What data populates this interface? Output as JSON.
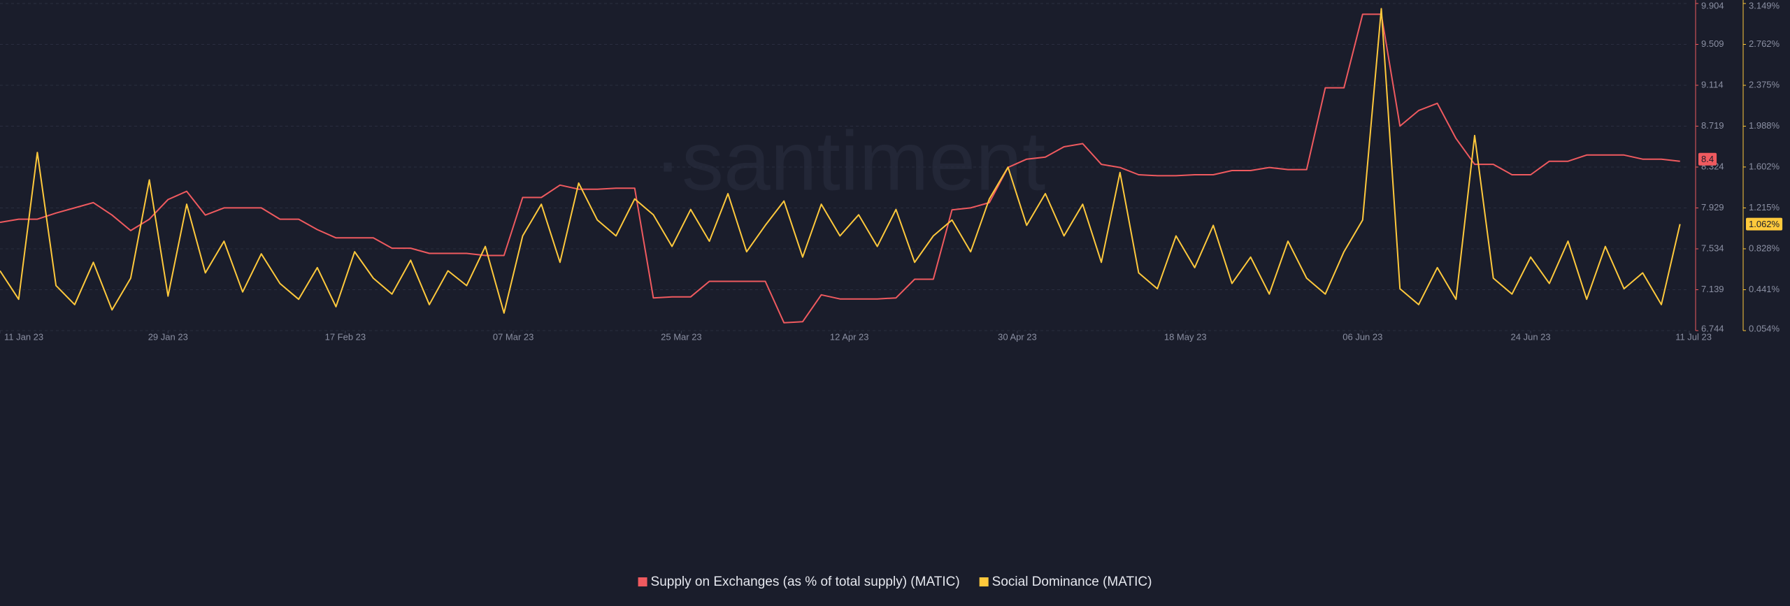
{
  "chart_data": {
    "type": "line",
    "watermark": "·santiment",
    "x": [
      "2023-01-11",
      "2023-01-13",
      "2023-01-15",
      "2023-01-17",
      "2023-01-19",
      "2023-01-21",
      "2023-01-23",
      "2023-01-25",
      "2023-01-27",
      "2023-01-29",
      "2023-01-31",
      "2023-02-02",
      "2023-02-04",
      "2023-02-06",
      "2023-02-08",
      "2023-02-10",
      "2023-02-12",
      "2023-02-14",
      "2023-02-16",
      "2023-02-18",
      "2023-02-20",
      "2023-02-22",
      "2023-02-24",
      "2023-02-26",
      "2023-02-28",
      "2023-03-02",
      "2023-03-04",
      "2023-03-06",
      "2023-03-08",
      "2023-03-10",
      "2023-03-12",
      "2023-03-14",
      "2023-03-16",
      "2023-03-18",
      "2023-03-20",
      "2023-03-22",
      "2023-03-24",
      "2023-03-26",
      "2023-03-28",
      "2023-03-30",
      "2023-04-01",
      "2023-04-03",
      "2023-04-05",
      "2023-04-07",
      "2023-04-09",
      "2023-04-11",
      "2023-04-13",
      "2023-04-15",
      "2023-04-17",
      "2023-04-19",
      "2023-04-21",
      "2023-04-23",
      "2023-04-25",
      "2023-04-27",
      "2023-04-29",
      "2023-05-01",
      "2023-05-03",
      "2023-05-05",
      "2023-05-07",
      "2023-05-09",
      "2023-05-11",
      "2023-05-13",
      "2023-05-15",
      "2023-05-17",
      "2023-05-19",
      "2023-05-21",
      "2023-05-23",
      "2023-05-25",
      "2023-05-27",
      "2023-05-29",
      "2023-05-31",
      "2023-06-02",
      "2023-06-04",
      "2023-06-06",
      "2023-06-08",
      "2023-06-10",
      "2023-06-12",
      "2023-06-14",
      "2023-06-16",
      "2023-06-18",
      "2023-06-20",
      "2023-06-22",
      "2023-06-24",
      "2023-06-26",
      "2023-06-28",
      "2023-06-30",
      "2023-07-02",
      "2023-07-04",
      "2023-07-06",
      "2023-07-08",
      "2023-07-10"
    ],
    "xlim": [
      "2023-01-11",
      "2023-07-11"
    ],
    "xticks": [
      {
        "value": "2023-01-11",
        "label": "11 Jan 23"
      },
      {
        "value": "2023-01-29",
        "label": "29 Jan 23"
      },
      {
        "value": "2023-02-17",
        "label": "17 Feb 23"
      },
      {
        "value": "2023-03-07",
        "label": "07 Mar 23"
      },
      {
        "value": "2023-03-25",
        "label": "25 Mar 23"
      },
      {
        "value": "2023-04-12",
        "label": "12 Apr 23"
      },
      {
        "value": "2023-04-30",
        "label": "30 Apr 23"
      },
      {
        "value": "2023-05-18",
        "label": "18 May 23"
      },
      {
        "value": "2023-06-06",
        "label": "06 Jun 23"
      },
      {
        "value": "2023-06-24",
        "label": "24 Jun 23"
      },
      {
        "value": "2023-07-11",
        "label": "11 Jul 23"
      }
    ],
    "ylim": [
      6.744,
      9.904
    ],
    "yticks": [
      6.744,
      7.139,
      7.534,
      7.929,
      8.324,
      8.719,
      9.114,
      9.509,
      9.904
    ],
    "y2lim": [
      0.054,
      3.149
    ],
    "y2ticks": [
      {
        "value": 0.054,
        "label": "0.054%"
      },
      {
        "value": 0.441,
        "label": "0.441%"
      },
      {
        "value": 0.828,
        "label": "0.828%"
      },
      {
        "value": 1.215,
        "label": "1.215%"
      },
      {
        "value": 1.602,
        "label": "1.602%"
      },
      {
        "value": 1.988,
        "label": "1.988%"
      },
      {
        "value": 2.375,
        "label": "2.375%"
      },
      {
        "value": 2.762,
        "label": "2.762%"
      },
      {
        "value": 3.149,
        "label": "3.149%"
      }
    ],
    "grid": true,
    "series": [
      {
        "name": "Supply on Exchanges (as % of total supply) (MATIC)",
        "color": "#ef5a5f",
        "axis": "y",
        "badge": {
          "value": 8.4,
          "label": "8.4"
        },
        "values": [
          7.79,
          7.82,
          7.82,
          7.88,
          7.93,
          7.98,
          7.86,
          7.71,
          7.82,
          8.01,
          8.09,
          7.86,
          7.93,
          7.93,
          7.93,
          7.82,
          7.82,
          7.72,
          7.64,
          7.64,
          7.64,
          7.54,
          7.54,
          7.49,
          7.49,
          7.49,
          7.47,
          7.47,
          8.03,
          8.03,
          8.15,
          8.11,
          8.11,
          8.12,
          8.12,
          7.06,
          7.07,
          7.07,
          7.22,
          7.22,
          7.22,
          7.22,
          6.82,
          6.83,
          7.09,
          7.05,
          7.05,
          7.05,
          7.06,
          7.24,
          7.24,
          7.91,
          7.93,
          7.98,
          8.32,
          8.4,
          8.42,
          8.52,
          8.55,
          8.35,
          8.32,
          8.25,
          8.24,
          8.24,
          8.25,
          8.25,
          8.29,
          8.29,
          8.32,
          8.3,
          8.3,
          9.09,
          9.09,
          9.8,
          9.8,
          8.72,
          8.87,
          8.94,
          8.6,
          8.35,
          8.35,
          8.25,
          8.25,
          8.38,
          8.38,
          8.44,
          8.44,
          8.44,
          8.4,
          8.4,
          8.38
        ]
      },
      {
        "name": "Social Dominance (MATIC)",
        "color": "#ffc93c",
        "axis": "y2",
        "badge": {
          "value": 1.062,
          "label": "1.062%"
        },
        "values": [
          0.62,
          0.35,
          1.74,
          0.48,
          0.3,
          0.7,
          0.25,
          0.55,
          1.48,
          0.38,
          1.25,
          0.6,
          0.9,
          0.42,
          0.78,
          0.5,
          0.35,
          0.65,
          0.28,
          0.8,
          0.55,
          0.4,
          0.72,
          0.3,
          0.62,
          0.48,
          0.85,
          0.22,
          0.95,
          1.25,
          0.7,
          1.45,
          1.1,
          0.95,
          1.3,
          1.15,
          0.85,
          1.2,
          0.9,
          1.35,
          0.8,
          1.05,
          1.28,
          0.75,
          1.25,
          0.95,
          1.15,
          0.85,
          1.2,
          0.7,
          0.95,
          1.1,
          0.8,
          1.3,
          1.6,
          1.05,
          1.35,
          0.95,
          1.25,
          0.7,
          1.55,
          0.6,
          0.45,
          0.95,
          0.65,
          1.05,
          0.5,
          0.75,
          0.4,
          0.9,
          0.55,
          0.4,
          0.8,
          1.1,
          3.1,
          0.45,
          0.3,
          0.65,
          0.35,
          1.9,
          0.55,
          0.4,
          0.75,
          0.5,
          0.9,
          0.35,
          0.85,
          0.45,
          0.6,
          0.3,
          1.062
        ]
      }
    ]
  }
}
